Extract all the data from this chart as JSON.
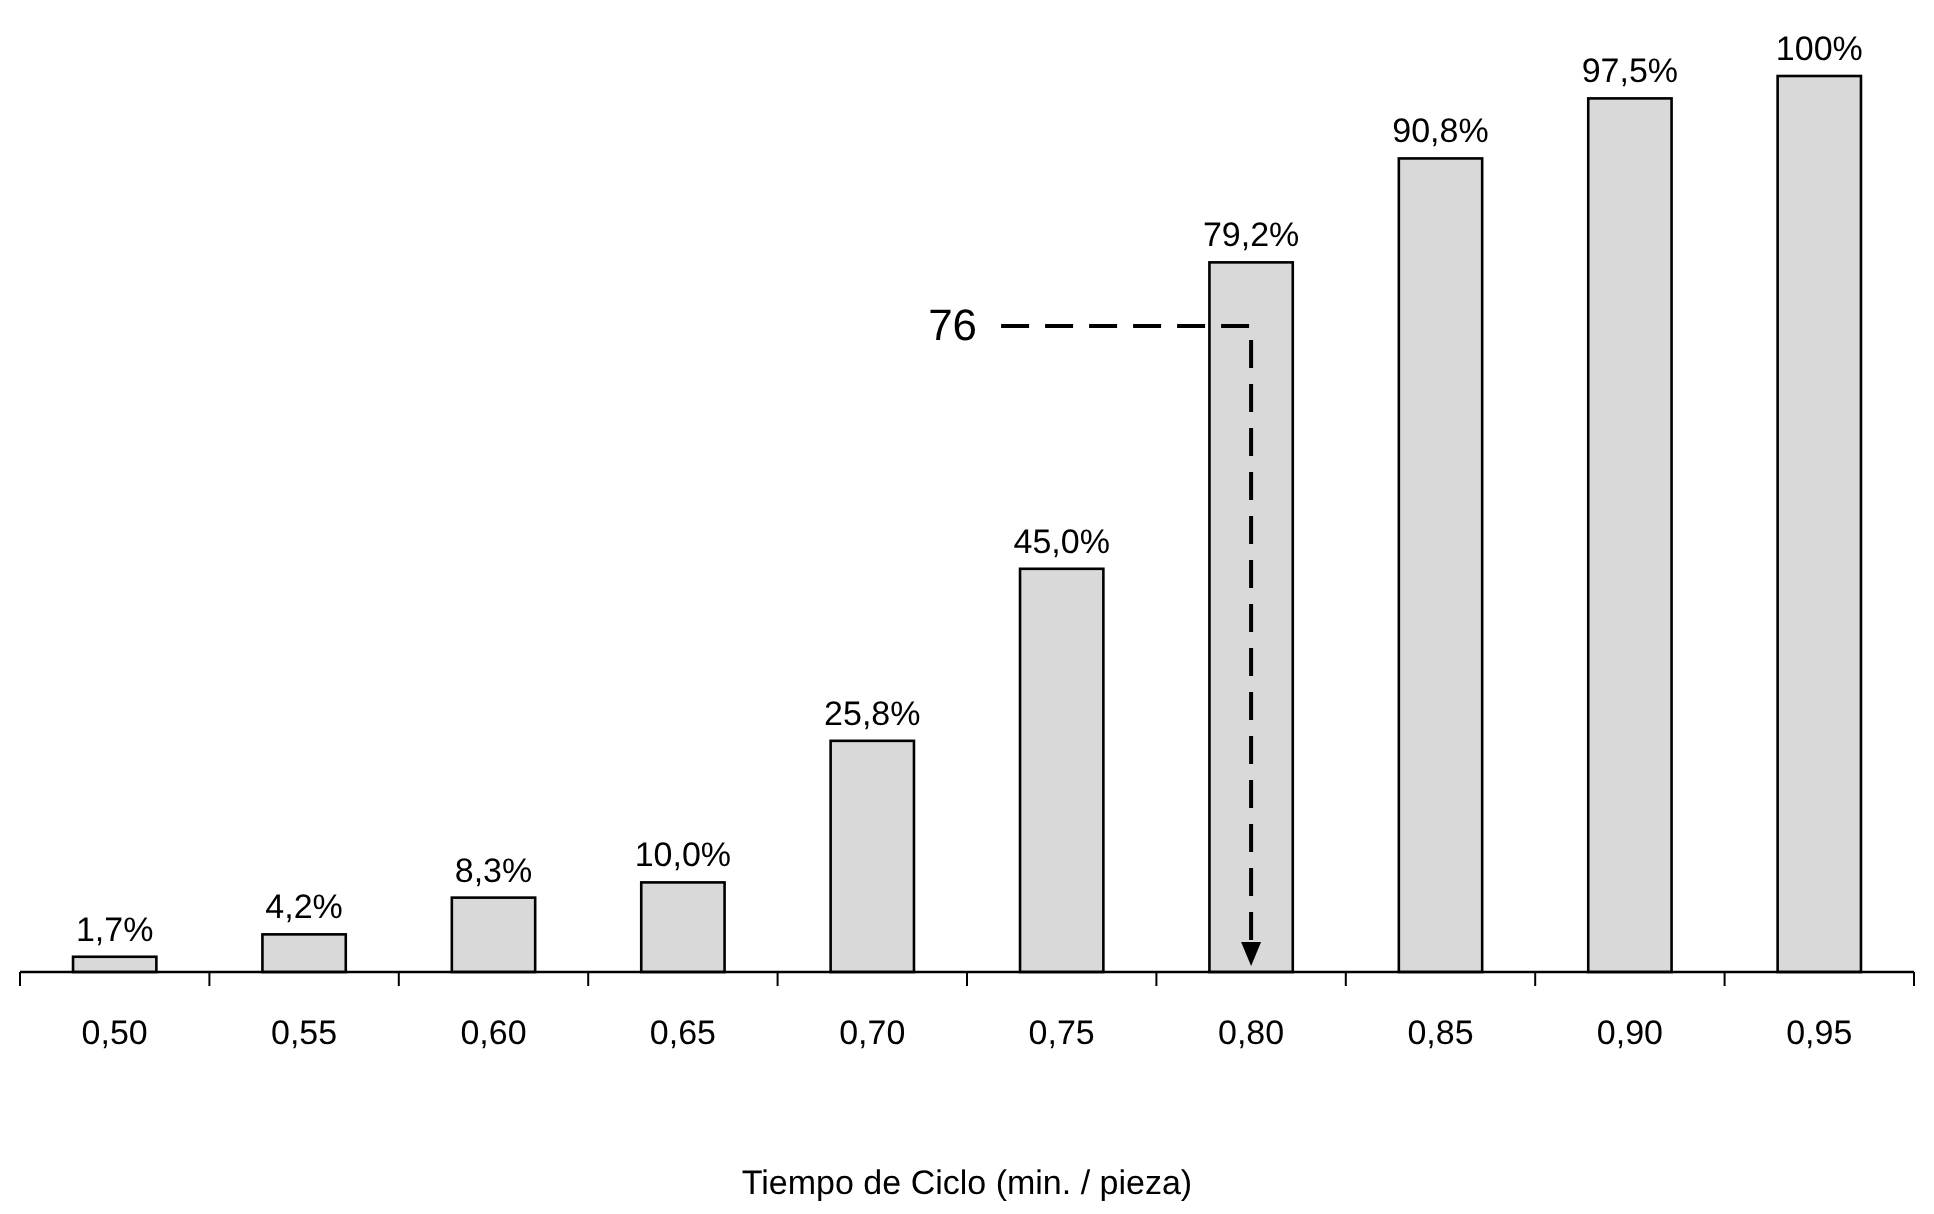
{
  "chart_data": {
    "type": "bar",
    "xlabel": "Tiempo de Ciclo (min. / pieza)",
    "categories": [
      "0,50",
      "0,55",
      "0,60",
      "0,65",
      "0,70",
      "0,75",
      "0,80",
      "0,85",
      "0,90",
      "0,95"
    ],
    "values": [
      1.7,
      4.2,
      8.3,
      10.0,
      25.8,
      45.0,
      79.2,
      90.8,
      97.5,
      100
    ],
    "value_labels": [
      "1,7%",
      "4,2%",
      "8,3%",
      "10,0%",
      "25,8%",
      "45,0%",
      "79,2%",
      "90,8%",
      "97,5%",
      "100%"
    ],
    "color": "#d9d9d9",
    "annotations": [
      "76"
    ]
  }
}
